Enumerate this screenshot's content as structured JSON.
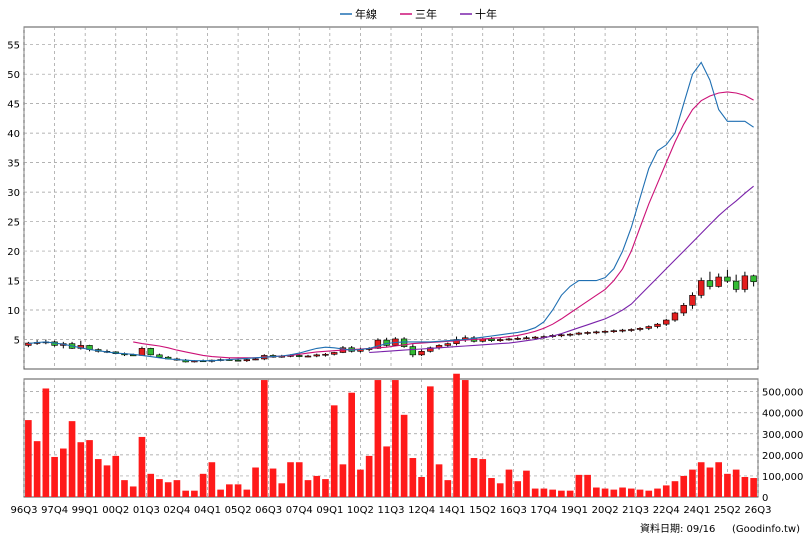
{
  "chart_data": {
    "type": "candlestick",
    "legend": {
      "placement": "top-center",
      "items": [
        {
          "label": "年線",
          "color": "#1f6fb2"
        },
        {
          "label": "三年",
          "color": "#cc1177"
        },
        {
          "label": "十年",
          "color": "#7a22aa"
        }
      ]
    },
    "colors": {
      "up": "#e31e1e",
      "down": "#33bb33",
      "volume": "#ff1a1a",
      "grid": "#999999",
      "frame": "#555555"
    },
    "price_axis": {
      "ticks": [
        5,
        10,
        15,
        20,
        25,
        30,
        35,
        40,
        45,
        50,
        55
      ],
      "range": [
        0,
        58
      ],
      "grid": true
    },
    "volume_axis": {
      "tick_labels": [
        "500,000",
        "400,000",
        "300,000",
        "200,000",
        "100,000",
        "0"
      ],
      "tick_values": [
        500000,
        400000,
        300000,
        200000,
        100000,
        0
      ],
      "range": [
        0,
        560000
      ]
    },
    "x_axis": {
      "tick_labels": [
        "96Q3",
        "97Q4",
        "99Q1",
        "00Q2",
        "01Q3",
        "02Q4",
        "04Q1",
        "05Q2",
        "06Q3",
        "07Q4",
        "09Q1",
        "10Q2",
        "11Q3",
        "12Q4",
        "14Q1",
        "15Q2",
        "16Q3",
        "17Q4",
        "19Q1",
        "20Q2",
        "21Q3",
        "22Q4",
        "24Q1",
        "25Q2",
        "26Q3"
      ]
    },
    "ma_year": [
      4.3,
      4.5,
      4.6,
      4.4,
      4.2,
      3.9,
      3.6,
      3.3,
      3.1,
      2.9,
      2.7,
      2.6,
      2.5,
      2.3,
      2.1,
      1.9,
      1.7,
      1.6,
      1.5,
      1.4,
      1.4,
      1.4,
      1.5,
      1.6,
      1.7,
      1.8,
      1.9,
      2.0,
      2.1,
      2.2,
      2.4,
      2.7,
      3.1,
      3.5,
      3.7,
      3.6,
      3.4,
      3.2,
      3.3,
      3.5,
      3.9,
      4.3,
      4.5,
      4.6,
      4.6,
      4.6,
      4.6,
      4.7,
      4.8,
      4.9,
      5.0,
      5.2,
      5.4,
      5.6,
      5.8,
      6.0,
      6.2,
      6.5,
      7.0,
      8.0,
      10.0,
      12.5,
      14.0,
      15.0,
      15.0,
      15.0,
      15.5,
      17.0,
      20.0,
      24.0,
      29.0,
      34.0,
      37.0,
      38.0,
      40.0,
      45.0,
      50.0,
      52.0,
      49.0,
      44.0,
      42.0,
      42.0,
      42.0,
      41.0
    ],
    "ma_3y": [
      null,
      null,
      null,
      null,
      null,
      null,
      null,
      null,
      null,
      null,
      null,
      null,
      4.6,
      4.3,
      4.1,
      3.9,
      3.6,
      3.2,
      2.9,
      2.6,
      2.3,
      2.1,
      2.0,
      1.9,
      1.9,
      1.9,
      1.9,
      2.0,
      2.1,
      2.2,
      2.3,
      2.5,
      2.7,
      2.9,
      3.0,
      3.1,
      3.2,
      3.3,
      3.4,
      3.5,
      3.6,
      3.7,
      3.9,
      4.1,
      4.3,
      4.4,
      4.5,
      4.6,
      4.7,
      4.8,
      4.9,
      5.0,
      5.1,
      5.2,
      5.3,
      5.5,
      5.7,
      6.0,
      6.4,
      6.9,
      7.6,
      8.5,
      9.5,
      10.5,
      11.5,
      12.5,
      13.5,
      15.0,
      17.0,
      20.0,
      24.0,
      28.0,
      31.5,
      35.0,
      38.5,
      41.5,
      44.0,
      45.5,
      46.3,
      46.8,
      47.0,
      46.8,
      46.4,
      45.6
    ],
    "ma_10y": [
      null,
      null,
      null,
      null,
      null,
      null,
      null,
      null,
      null,
      null,
      null,
      null,
      null,
      null,
      null,
      null,
      null,
      null,
      null,
      null,
      null,
      null,
      null,
      null,
      null,
      null,
      null,
      null,
      null,
      null,
      null,
      null,
      null,
      null,
      null,
      null,
      null,
      null,
      null,
      2.8,
      2.9,
      3.0,
      3.1,
      3.2,
      3.3,
      3.4,
      3.5,
      3.6,
      3.7,
      3.8,
      3.9,
      4.0,
      4.1,
      4.2,
      4.3,
      4.4,
      4.6,
      4.8,
      5.0,
      5.3,
      5.6,
      6.0,
      6.5,
      7.0,
      7.5,
      8.0,
      8.5,
      9.2,
      10.0,
      11.0,
      12.5,
      14.0,
      15.5,
      17.0,
      18.5,
      20.0,
      21.5,
      23.0,
      24.5,
      26.0,
      27.3,
      28.5,
      29.8,
      31.0
    ],
    "quarters": [
      {
        "o": 4.0,
        "h": 4.6,
        "l": 3.7,
        "c": 4.4,
        "v": 365000
      },
      {
        "o": 4.4,
        "h": 4.9,
        "l": 4.1,
        "c": 4.5,
        "v": 265000
      },
      {
        "o": 4.5,
        "h": 5.0,
        "l": 4.2,
        "c": 4.6,
        "v": 515000
      },
      {
        "o": 4.6,
        "h": 4.8,
        "l": 3.8,
        "c": 4.0,
        "v": 190000
      },
      {
        "o": 4.0,
        "h": 4.6,
        "l": 3.5,
        "c": 4.3,
        "v": 230000
      },
      {
        "o": 4.3,
        "h": 4.6,
        "l": 3.4,
        "c": 3.5,
        "v": 360000
      },
      {
        "o": 3.5,
        "h": 4.8,
        "l": 3.3,
        "c": 4.0,
        "v": 260000
      },
      {
        "o": 4.0,
        "h": 4.1,
        "l": 3.0,
        "c": 3.3,
        "v": 270000
      },
      {
        "o": 3.3,
        "h": 3.5,
        "l": 2.8,
        "c": 3.0,
        "v": 180000
      },
      {
        "o": 3.0,
        "h": 3.3,
        "l": 2.7,
        "c": 2.9,
        "v": 150000
      },
      {
        "o": 2.9,
        "h": 3.0,
        "l": 2.5,
        "c": 2.6,
        "v": 195000
      },
      {
        "o": 2.6,
        "h": 2.8,
        "l": 2.2,
        "c": 2.4,
        "v": 80000
      },
      {
        "o": 2.4,
        "h": 2.6,
        "l": 2.2,
        "c": 2.3,
        "v": 50000
      },
      {
        "o": 2.3,
        "h": 3.8,
        "l": 2.2,
        "c": 3.5,
        "v": 285000
      },
      {
        "o": 3.5,
        "h": 3.6,
        "l": 2.3,
        "c": 2.4,
        "v": 110000
      },
      {
        "o": 2.4,
        "h": 2.6,
        "l": 1.9,
        "c": 2.0,
        "v": 85000
      },
      {
        "o": 2.0,
        "h": 2.2,
        "l": 1.6,
        "c": 1.7,
        "v": 70000
      },
      {
        "o": 1.7,
        "h": 1.9,
        "l": 1.4,
        "c": 1.5,
        "v": 80000
      },
      {
        "o": 1.5,
        "h": 1.7,
        "l": 1.1,
        "c": 1.2,
        "v": 30000
      },
      {
        "o": 1.2,
        "h": 1.5,
        "l": 1.1,
        "c": 1.4,
        "v": 30000
      },
      {
        "o": 1.4,
        "h": 1.6,
        "l": 1.2,
        "c": 1.3,
        "v": 110000
      },
      {
        "o": 1.3,
        "h": 1.6,
        "l": 1.1,
        "c": 1.5,
        "v": 165000
      },
      {
        "o": 1.5,
        "h": 1.8,
        "l": 1.3,
        "c": 1.6,
        "v": 35000
      },
      {
        "o": 1.6,
        "h": 1.8,
        "l": 1.4,
        "c": 1.5,
        "v": 60000
      },
      {
        "o": 1.5,
        "h": 1.7,
        "l": 1.3,
        "c": 1.4,
        "v": 60000
      },
      {
        "o": 1.4,
        "h": 1.8,
        "l": 1.2,
        "c": 1.6,
        "v": 35000
      },
      {
        "o": 1.6,
        "h": 1.9,
        "l": 1.5,
        "c": 1.7,
        "v": 140000
      },
      {
        "o": 1.7,
        "h": 2.5,
        "l": 1.5,
        "c": 2.3,
        "v": 555000
      },
      {
        "o": 2.3,
        "h": 2.5,
        "l": 1.9,
        "c": 2.0,
        "v": 135000
      },
      {
        "o": 2.0,
        "h": 2.4,
        "l": 1.9,
        "c": 2.2,
        "v": 65000
      },
      {
        "o": 2.2,
        "h": 2.5,
        "l": 2.0,
        "c": 2.3,
        "v": 165000
      },
      {
        "o": 2.3,
        "h": 2.5,
        "l": 2.0,
        "c": 2.1,
        "v": 165000
      },
      {
        "o": 2.1,
        "h": 2.4,
        "l": 2.0,
        "c": 2.2,
        "v": 80000
      },
      {
        "o": 2.2,
        "h": 2.6,
        "l": 2.0,
        "c": 2.4,
        "v": 100000
      },
      {
        "o": 2.4,
        "h": 2.7,
        "l": 2.1,
        "c": 2.5,
        "v": 85000
      },
      {
        "o": 2.5,
        "h": 2.9,
        "l": 2.3,
        "c": 2.8,
        "v": 435000
      },
      {
        "o": 2.8,
        "h": 3.9,
        "l": 2.7,
        "c": 3.6,
        "v": 155000
      },
      {
        "o": 3.6,
        "h": 3.9,
        "l": 2.8,
        "c": 3.0,
        "v": 495000
      },
      {
        "o": 3.0,
        "h": 3.6,
        "l": 2.8,
        "c": 3.3,
        "v": 130000
      },
      {
        "o": 3.3,
        "h": 3.7,
        "l": 3.0,
        "c": 3.5,
        "v": 195000
      },
      {
        "o": 3.5,
        "h": 5.2,
        "l": 3.4,
        "c": 4.9,
        "v": 555000
      },
      {
        "o": 4.9,
        "h": 5.3,
        "l": 3.8,
        "c": 4.0,
        "v": 240000
      },
      {
        "o": 4.0,
        "h": 5.4,
        "l": 3.9,
        "c": 5.1,
        "v": 555000
      },
      {
        "o": 5.1,
        "h": 5.4,
        "l": 3.6,
        "c": 3.8,
        "v": 390000
      },
      {
        "o": 3.8,
        "h": 4.2,
        "l": 2.0,
        "c": 2.4,
        "v": 185000
      },
      {
        "o": 2.4,
        "h": 3.3,
        "l": 2.2,
        "c": 3.0,
        "v": 95000
      },
      {
        "o": 3.0,
        "h": 3.8,
        "l": 2.8,
        "c": 3.6,
        "v": 525000
      },
      {
        "o": 3.6,
        "h": 4.2,
        "l": 3.3,
        "c": 4.0,
        "v": 155000
      },
      {
        "o": 4.0,
        "h": 4.5,
        "l": 3.7,
        "c": 4.3,
        "v": 80000
      },
      {
        "o": 4.3,
        "h": 5.5,
        "l": 4.0,
        "c": 5.0,
        "v": 585000
      },
      {
        "o": 5.0,
        "h": 5.7,
        "l": 4.6,
        "c": 5.3,
        "v": 555000
      },
      {
        "o": 5.3,
        "h": 5.6,
        "l": 4.5,
        "c": 4.7,
        "v": 185000
      },
      {
        "o": 4.7,
        "h": 5.3,
        "l": 4.5,
        "c": 5.1,
        "v": 180000
      },
      {
        "o": 5.1,
        "h": 5.4,
        "l": 4.6,
        "c": 4.8,
        "v": 90000
      },
      {
        "o": 4.8,
        "h": 5.3,
        "l": 4.6,
        "c": 5.0,
        "v": 65000
      },
      {
        "o": 5.0,
        "h": 5.3,
        "l": 4.8,
        "c": 5.1,
        "v": 130000
      },
      {
        "o": 5.1,
        "h": 5.5,
        "l": 4.9,
        "c": 5.2,
        "v": 75000
      },
      {
        "o": 5.2,
        "h": 5.6,
        "l": 5.0,
        "c": 5.3,
        "v": 125000
      },
      {
        "o": 5.3,
        "h": 5.6,
        "l": 5.0,
        "c": 5.4,
        "v": 40000
      },
      {
        "o": 5.4,
        "h": 5.7,
        "l": 5.1,
        "c": 5.5,
        "v": 40000
      },
      {
        "o": 5.5,
        "h": 5.9,
        "l": 5.3,
        "c": 5.7,
        "v": 35000
      },
      {
        "o": 5.7,
        "h": 6.0,
        "l": 5.4,
        "c": 5.8,
        "v": 30000
      },
      {
        "o": 5.8,
        "h": 6.1,
        "l": 5.5,
        "c": 5.9,
        "v": 30000
      },
      {
        "o": 5.9,
        "h": 6.3,
        "l": 5.7,
        "c": 6.1,
        "v": 105000
      },
      {
        "o": 6.1,
        "h": 6.4,
        "l": 5.8,
        "c": 6.2,
        "v": 105000
      },
      {
        "o": 6.2,
        "h": 6.5,
        "l": 5.9,
        "c": 6.3,
        "v": 45000
      },
      {
        "o": 6.3,
        "h": 6.6,
        "l": 6.0,
        "c": 6.4,
        "v": 40000
      },
      {
        "o": 6.4,
        "h": 6.7,
        "l": 6.1,
        "c": 6.5,
        "v": 35000
      },
      {
        "o": 6.5,
        "h": 6.8,
        "l": 6.2,
        "c": 6.6,
        "v": 45000
      },
      {
        "o": 6.6,
        "h": 6.9,
        "l": 6.3,
        "c": 6.7,
        "v": 40000
      },
      {
        "o": 6.7,
        "h": 7.1,
        "l": 6.4,
        "c": 6.9,
        "v": 35000
      },
      {
        "o": 6.9,
        "h": 7.4,
        "l": 6.6,
        "c": 7.2,
        "v": 30000
      },
      {
        "o": 7.2,
        "h": 7.8,
        "l": 6.9,
        "c": 7.6,
        "v": 40000
      },
      {
        "o": 7.6,
        "h": 8.5,
        "l": 7.3,
        "c": 8.3,
        "v": 55000
      },
      {
        "o": 8.3,
        "h": 9.7,
        "l": 8.0,
        "c": 9.5,
        "v": 75000
      },
      {
        "o": 9.5,
        "h": 11.2,
        "l": 9.0,
        "c": 10.8,
        "v": 100000
      },
      {
        "o": 10.8,
        "h": 13.0,
        "l": 10.2,
        "c": 12.5,
        "v": 130000
      },
      {
        "o": 12.5,
        "h": 15.5,
        "l": 12.0,
        "c": 15.0,
        "v": 165000
      },
      {
        "o": 15.0,
        "h": 16.5,
        "l": 13.5,
        "c": 14.0,
        "v": 140000
      },
      {
        "o": 14.0,
        "h": 16.2,
        "l": 13.8,
        "c": 15.6,
        "v": 165000
      },
      {
        "o": 15.6,
        "h": 16.8,
        "l": 14.6,
        "c": 14.9,
        "v": 110000
      },
      {
        "o": 14.9,
        "h": 16.0,
        "l": 13.0,
        "c": 13.5,
        "v": 130000
      },
      {
        "o": 13.5,
        "h": 16.5,
        "l": 13.0,
        "c": 15.8,
        "v": 95000
      },
      {
        "o": 15.8,
        "h": 16.0,
        "l": 14.0,
        "c": 14.8,
        "v": 90000
      }
    ]
  },
  "footer": {
    "date_label": "資料日期: 09/16",
    "source": "(Goodinfo.tw)"
  }
}
